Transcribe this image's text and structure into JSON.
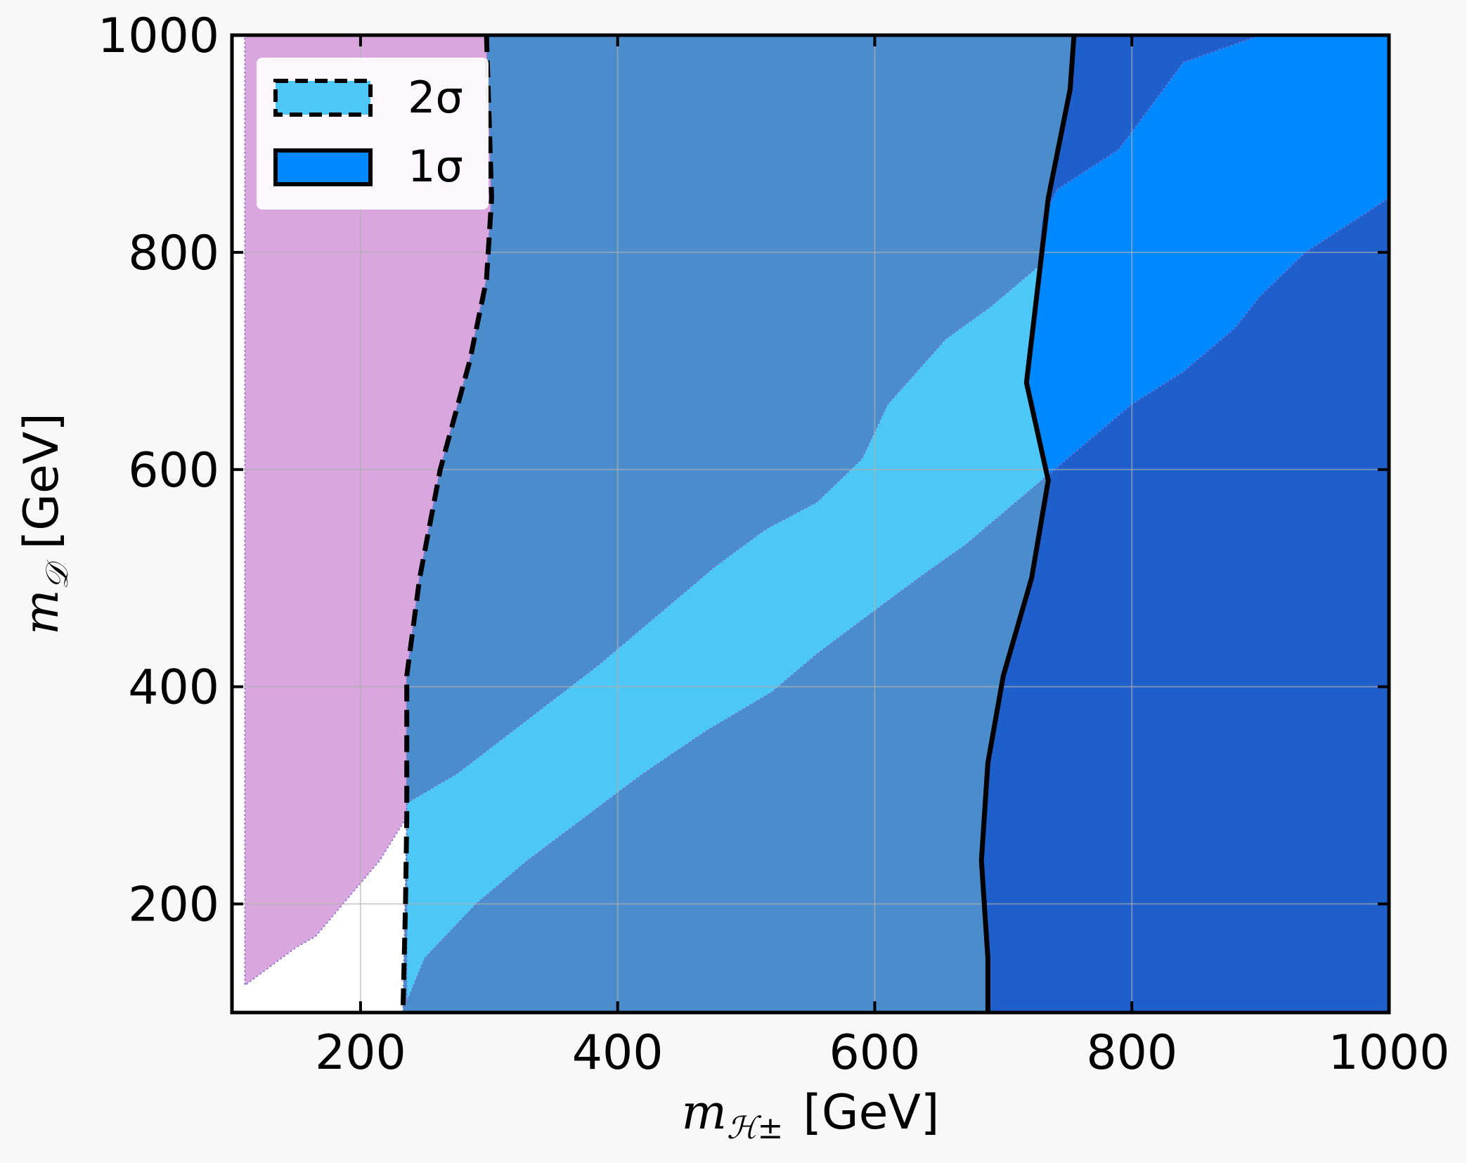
{
  "chart_data": {
    "type": "contour",
    "xlabel_main": "m",
    "xlabel_sub": "ℋ±",
    "xlabel_unit": "[GeV]",
    "ylabel_main": "m",
    "ylabel_sub": "𝒟",
    "ylabel_unit": "[GeV]",
    "xlim": [
      100,
      1000
    ],
    "ylim": [
      100,
      1000
    ],
    "xticks": [
      200,
      400,
      600,
      800,
      1000
    ],
    "yticks": [
      200,
      400,
      600,
      800,
      1000
    ],
    "grid": true,
    "legend_position": "upper-left",
    "legend": [
      {
        "label": "2σ",
        "style": "dashed",
        "color": "#4dc7f5"
      },
      {
        "label": "1σ",
        "style": "solid",
        "color": "#0088ff"
      }
    ],
    "regions": [
      {
        "name": "excluded",
        "color": "#d9a6de",
        "points": [
          [
            110,
            1000
          ],
          [
            298,
            1000
          ],
          [
            302,
            850
          ],
          [
            298,
            775
          ],
          [
            285,
            700
          ],
          [
            262,
            600
          ],
          [
            246,
            500
          ],
          [
            236,
            410
          ],
          [
            236,
            350
          ],
          [
            236,
            280
          ],
          [
            215,
            240
          ],
          [
            165,
            170
          ],
          [
            150,
            160
          ],
          [
            110,
            125
          ]
        ]
      },
      {
        "name": "mid-blue",
        "color": "#4a8ccc",
        "points": [
          [
            298,
            1000
          ],
          [
            755,
            1000
          ],
          [
            752,
            950
          ],
          [
            735,
            850
          ],
          [
            725,
            750
          ],
          [
            718,
            680
          ],
          [
            735,
            590
          ],
          [
            722,
            500
          ],
          [
            700,
            410
          ],
          [
            688,
            330
          ],
          [
            683,
            240
          ],
          [
            688,
            150
          ],
          [
            688,
            100
          ],
          [
            233,
            100
          ],
          [
            236,
            280
          ],
          [
            236,
            350
          ],
          [
            236,
            410
          ],
          [
            246,
            500
          ],
          [
            262,
            600
          ],
          [
            285,
            700
          ],
          [
            298,
            775
          ],
          [
            302,
            850
          ]
        ]
      },
      {
        "name": "dark-blue",
        "color": "#1f5fcc",
        "points": [
          [
            755,
            1000
          ],
          [
            1000,
            1000
          ],
          [
            1000,
            100
          ],
          [
            688,
            100
          ],
          [
            688,
            150
          ],
          [
            683,
            240
          ],
          [
            688,
            330
          ],
          [
            700,
            410
          ],
          [
            722,
            500
          ],
          [
            735,
            590
          ],
          [
            718,
            680
          ],
          [
            725,
            750
          ],
          [
            735,
            850
          ],
          [
            752,
            950
          ]
        ]
      },
      {
        "name": "1sigma",
        "color": "#0088ff",
        "points": [
          [
            742,
            858
          ],
          [
            790,
            895
          ],
          [
            840,
            975
          ],
          [
            900,
            1000
          ],
          [
            1000,
            1000
          ],
          [
            1000,
            850
          ],
          [
            935,
            800
          ],
          [
            900,
            760
          ],
          [
            880,
            730
          ],
          [
            840,
            690
          ],
          [
            800,
            660
          ],
          [
            770,
            630
          ],
          [
            735,
            595
          ],
          [
            718,
            680
          ],
          [
            725,
            750
          ],
          [
            730,
            830
          ]
        ]
      },
      {
        "name": "2sigma",
        "color": "#4dc7f5",
        "points": [
          [
            236,
            293
          ],
          [
            275,
            320
          ],
          [
            330,
            370
          ],
          [
            385,
            420
          ],
          [
            435,
            470
          ],
          [
            475,
            510
          ],
          [
            515,
            545
          ],
          [
            555,
            570
          ],
          [
            590,
            610
          ],
          [
            610,
            660
          ],
          [
            640,
            700
          ],
          [
            655,
            720
          ],
          [
            690,
            750
          ],
          [
            730,
            790
          ],
          [
            722,
            730
          ],
          [
            718,
            680
          ],
          [
            735,
            595
          ],
          [
            700,
            560
          ],
          [
            670,
            530
          ],
          [
            640,
            505
          ],
          [
            600,
            470
          ],
          [
            555,
            430
          ],
          [
            520,
            395
          ],
          [
            470,
            360
          ],
          [
            420,
            320
          ],
          [
            375,
            280
          ],
          [
            330,
            240
          ],
          [
            290,
            200
          ],
          [
            250,
            150
          ],
          [
            236,
            110
          ],
          [
            236,
            200
          ],
          [
            236,
            280
          ]
        ]
      }
    ],
    "contours": [
      {
        "sigma": "2σ",
        "style": "dashed",
        "points": [
          [
            298,
            1000
          ],
          [
            302,
            850
          ],
          [
            298,
            775
          ],
          [
            285,
            700
          ],
          [
            262,
            600
          ],
          [
            246,
            500
          ],
          [
            236,
            410
          ],
          [
            236,
            350
          ],
          [
            236,
            280
          ],
          [
            235,
            200
          ],
          [
            233,
            100
          ]
        ]
      },
      {
        "sigma": "1σ",
        "style": "solid",
        "points": [
          [
            755,
            1000
          ],
          [
            752,
            950
          ],
          [
            735,
            850
          ],
          [
            725,
            750
          ],
          [
            718,
            680
          ],
          [
            735,
            590
          ],
          [
            722,
            500
          ],
          [
            700,
            410
          ],
          [
            688,
            330
          ],
          [
            683,
            240
          ],
          [
            688,
            150
          ],
          [
            688,
            100
          ]
        ]
      }
    ]
  }
}
